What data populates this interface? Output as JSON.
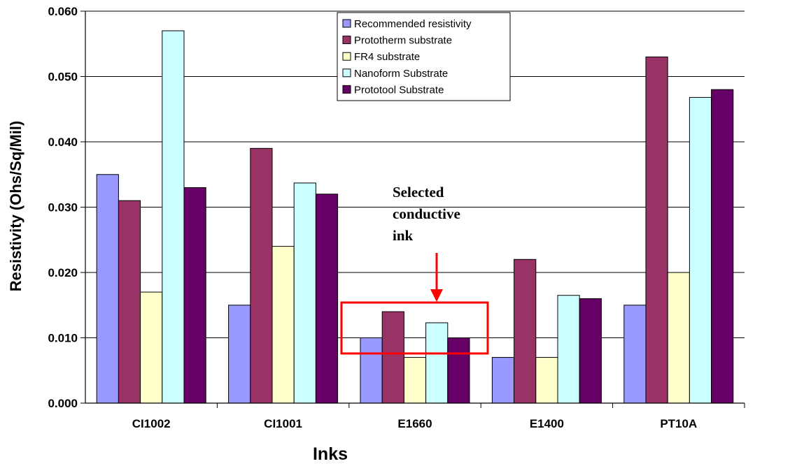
{
  "chart_data": {
    "type": "bar",
    "title": "",
    "xlabel": "Inks",
    "ylabel": "Resistivity (Ohs/Sq/Mil)",
    "ylim": [
      0,
      0.06
    ],
    "yticks": [
      "0.000",
      "0.010",
      "0.020",
      "0.030",
      "0.040",
      "0.050",
      "0.060"
    ],
    "grid": "horizontal",
    "legend_position": "top-center",
    "categories": [
      "CI1002",
      "CI1001",
      "E1660",
      "E1400",
      "PT10A"
    ],
    "series": [
      {
        "name": "Recommended  resistivity",
        "color": "#9999ff",
        "values": [
          0.035,
          0.015,
          0.01,
          0.007,
          0.015
        ]
      },
      {
        "name": "Prototherm substrate",
        "color": "#993366",
        "values": [
          0.031,
          0.039,
          0.014,
          0.022,
          0.053
        ]
      },
      {
        "name": "FR4 substrate",
        "color": "#ffffcc",
        "values": [
          0.017,
          0.024,
          0.007,
          0.007,
          0.02
        ]
      },
      {
        "name": "Nanoform Substrate",
        "color": "#ccffff",
        "values": [
          0.057,
          0.0337,
          0.0123,
          0.0165,
          0.0468
        ]
      },
      {
        "name": "Prototool Substrate",
        "color": "#660066",
        "values": [
          0.033,
          0.032,
          0.01,
          0.016,
          0.048
        ]
      }
    ],
    "annotation": {
      "lines": [
        "Selected",
        "conductive",
        "ink"
      ],
      "target_category": "E1660",
      "highlight_color": "#ff0000"
    }
  }
}
